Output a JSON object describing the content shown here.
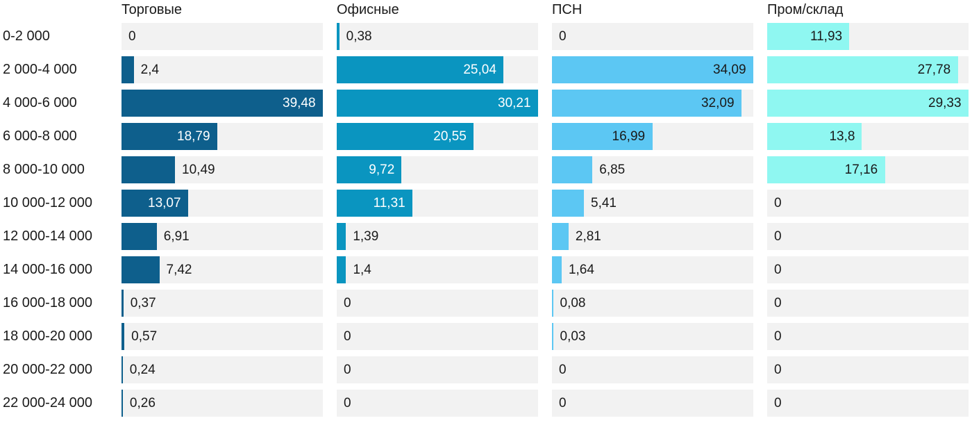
{
  "chart_data": {
    "type": "bar",
    "orientation": "horizontal",
    "layout": "small-multiples-4-columns",
    "scaling": "each column scaled to its own max value",
    "grid": false,
    "legend_position": "column-headers-top",
    "decimal_separator": ",",
    "track_color": "#f2f2f2",
    "outside_label_color": "#1a1a1a",
    "categories": [
      "0-2 000",
      "2 000-4 000",
      "4 000-6 000",
      "6 000-8 000",
      "8 000-10 000",
      "10 000-12 000",
      "12 000-14 000",
      "14 000-16 000",
      "16 000-18 000",
      "18 000-20 000",
      "20 000-22 000",
      "22 000-24 000"
    ],
    "series": [
      {
        "name": "Торговые",
        "color": "#0e5f8c",
        "inside_label_color": "#ffffff",
        "values": [
          0,
          2.4,
          39.48,
          18.79,
          10.49,
          13.07,
          6.91,
          7.42,
          0.37,
          0.57,
          0.24,
          0.26
        ]
      },
      {
        "name": "Офисные",
        "color": "#0a95c0",
        "inside_label_color": "#ffffff",
        "values": [
          0.38,
          25.04,
          30.21,
          20.55,
          9.72,
          11.31,
          1.39,
          1.4,
          0,
          0,
          0,
          0
        ]
      },
      {
        "name": "ПСН",
        "color": "#5cc7f3",
        "inside_label_color": "#1a1a1a",
        "values": [
          0,
          34.09,
          32.09,
          16.99,
          6.85,
          5.41,
          2.81,
          1.64,
          0.08,
          0.03,
          0,
          0
        ]
      },
      {
        "name": "Пром/склад",
        "color": "#8ff7f1",
        "inside_label_color": "#1a1a1a",
        "values": [
          11.93,
          27.78,
          29.33,
          13.8,
          17.16,
          0,
          0,
          0,
          0,
          0,
          0,
          0
        ]
      }
    ]
  }
}
